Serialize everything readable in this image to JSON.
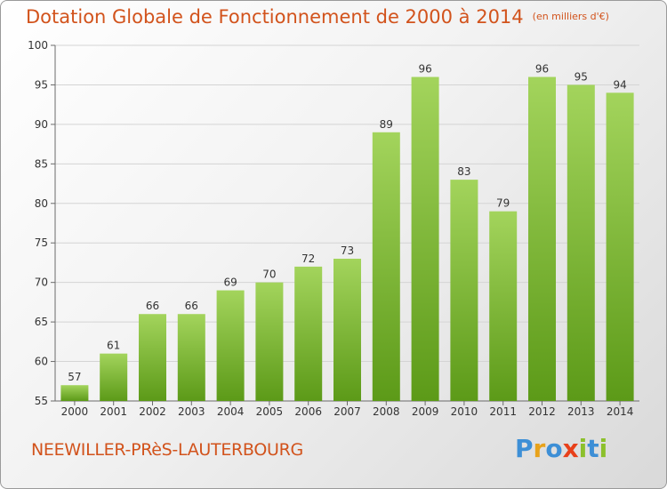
{
  "header": {
    "title": "Dotation Globale de Fonctionnement de 2000 à 2014",
    "unit": "(en milliers d'€)"
  },
  "footer": {
    "town": "NEEWILLER-PRèS-LAUTERBOURG",
    "logo_letters": [
      "P",
      "r",
      "o",
      "x",
      "i",
      "t",
      "i"
    ],
    "logo_colors": [
      "#3d8fd6",
      "#e8a21a",
      "#3d8fd6",
      "#e8401a",
      "#8cc02c",
      "#3d8fd6",
      "#8cc02c"
    ]
  },
  "colors": {
    "bar_light": "#a3d45c",
    "bar_dark": "#5c9a18",
    "grid": "#d4d4d4",
    "axis": "#6b6b6b",
    "text": "#333333"
  },
  "chart_data": {
    "type": "bar",
    "categories": [
      "2000",
      "2001",
      "2002",
      "2003",
      "2004",
      "2005",
      "2006",
      "2007",
      "2008",
      "2009",
      "2010",
      "2011",
      "2012",
      "2013",
      "2014"
    ],
    "values": [
      57,
      61,
      66,
      66,
      69,
      70,
      72,
      73,
      89,
      96,
      83,
      79,
      96,
      95,
      94
    ],
    "ylim": [
      55,
      100
    ],
    "yticks": [
      55,
      60,
      65,
      70,
      75,
      80,
      85,
      90,
      95,
      100
    ],
    "grid": true,
    "data_labels": true
  }
}
